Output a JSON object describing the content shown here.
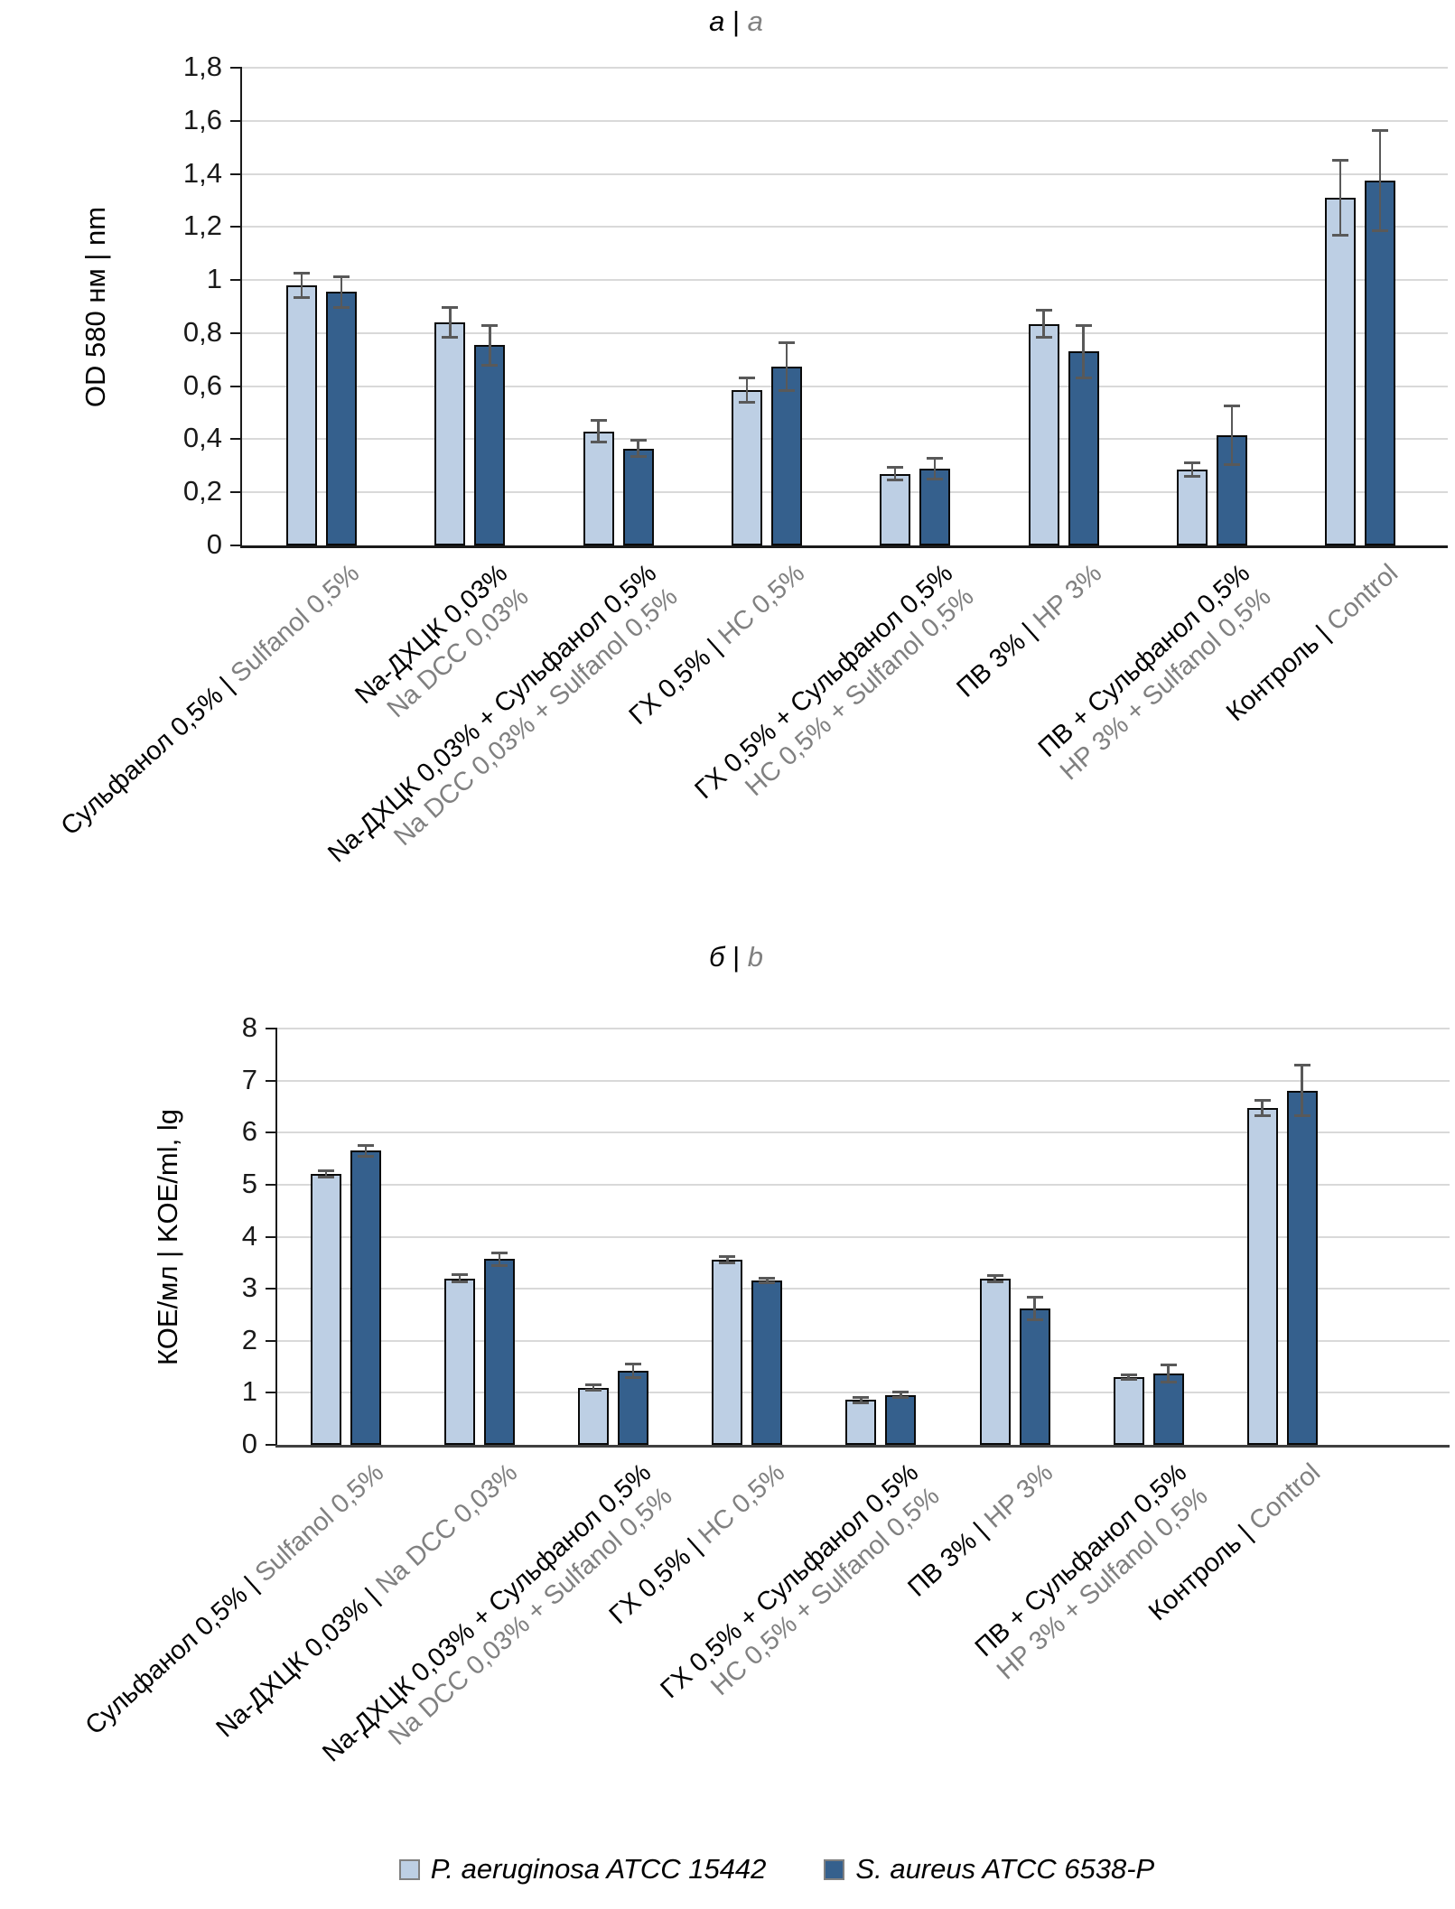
{
  "figure": {
    "legend": [
      {
        "label": "P. aeruginosa ATCC 15442",
        "color": "#BDCFE4"
      },
      {
        "label": "S. aureus ATCC 6538-P",
        "color": "#35608D"
      }
    ],
    "colors": {
      "grid": "#D9D9D9",
      "error": "#595959",
      "gray_text": "#808080",
      "bar_border": "#0A0A0A",
      "light_series": "#BDCFE4",
      "dark_series": "#35608D"
    }
  },
  "chart_data": [
    {
      "id": "a",
      "type": "bar",
      "panel_title": {
        "ru": "а",
        "en": "a"
      },
      "ylabel": "OD 580 нм | nm",
      "ymax": 1.8,
      "ylim": [
        0,
        1.8
      ],
      "grid": true,
      "ytick_labels": [
        "0",
        "0,2",
        "0,4",
        "0,6",
        "0,8",
        "1",
        "1,2",
        "1,4",
        "1,6",
        "1,8"
      ],
      "categories": [
        {
          "lines": [
            [
              {
                "t": "Сульфанол 0,5% | ",
                "c": "black"
              },
              {
                "t": "Sulfanol 0,5%",
                "c": "gray"
              }
            ]
          ]
        },
        {
          "lines": [
            [
              {
                "t": "Na-ДХЦК 0,03%",
                "c": "black"
              }
            ],
            [
              {
                "t": "Na DCC 0,03%",
                "c": "gray"
              }
            ]
          ]
        },
        {
          "lines": [
            [
              {
                "t": "Na-ДХЦК 0,03% + Сульфанол 0,5%",
                "c": "black"
              }
            ],
            [
              {
                "t": "Na DCC 0,03% + Sulfanol 0,5%",
                "c": "gray"
              }
            ]
          ]
        },
        {
          "lines": [
            [
              {
                "t": "ГХ 0,5% | ",
                "c": "black"
              },
              {
                "t": "НС 0,5%",
                "c": "gray"
              }
            ]
          ]
        },
        {
          "lines": [
            [
              {
                "t": "ГХ 0,5% + Сульфанол 0,5%",
                "c": "black"
              }
            ],
            [
              {
                "t": "НС 0,5% + Sulfanol 0,5%",
                "c": "gray"
              }
            ]
          ]
        },
        {
          "lines": [
            [
              {
                "t": "ПВ 3% | ",
                "c": "black"
              },
              {
                "t": "HP 3%",
                "c": "gray"
              }
            ]
          ]
        },
        {
          "lines": [
            [
              {
                "t": "ПВ + Сульфанол 0,5%",
                "c": "black"
              }
            ],
            [
              {
                "t": "HP 3% + Sulfanol 0,5%",
                "c": "gray"
              }
            ]
          ]
        },
        {
          "lines": [
            [
              {
                "t": "Контроль | ",
                "c": "black"
              },
              {
                "t": "Control",
                "c": "gray"
              }
            ]
          ]
        }
      ],
      "series": [
        {
          "name": "P. aeruginosa ATCC 15442",
          "color": "#BDCFE4",
          "values": [
            0.98,
            0.84,
            0.43,
            0.585,
            0.27,
            0.835,
            0.285,
            1.31
          ],
          "errors": [
            0.047,
            0.057,
            0.042,
            0.047,
            0.025,
            0.05,
            0.025,
            0.14
          ]
        },
        {
          "name": "S. aureus ATCC 6538-P",
          "color": "#35608D",
          "values": [
            0.955,
            0.755,
            0.365,
            0.675,
            0.29,
            0.73,
            0.415,
            1.375
          ],
          "errors": [
            0.058,
            0.075,
            0.03,
            0.09,
            0.04,
            0.1,
            0.11,
            0.19
          ]
        }
      ]
    },
    {
      "id": "b",
      "type": "bar",
      "panel_title": {
        "ru": "б",
        "en": "b"
      },
      "ylabel": "КОЕ/мл | KOE/ml, lg",
      "ymax": 8,
      "ylim": [
        0,
        8
      ],
      "grid": true,
      "ytick_labels": [
        "0",
        "1",
        "2",
        "3",
        "4",
        "5",
        "6",
        "7",
        "8"
      ],
      "categories": [
        {
          "lines": [
            [
              {
                "t": "Сульфанол 0,5% | ",
                "c": "black"
              },
              {
                "t": "Sulfanol 0,5%",
                "c": "gray"
              }
            ]
          ]
        },
        {
          "lines": [
            [
              {
                "t": "Na-ДХЦК 0,03% | ",
                "c": "black"
              },
              {
                "t": "Na DCC 0,03%",
                "c": "gray"
              }
            ]
          ]
        },
        {
          "lines": [
            [
              {
                "t": "Na-ДХЦК 0,03% + Сульфанол 0,5%",
                "c": "black"
              }
            ],
            [
              {
                "t": "Na DCC 0,03% + Sulfanol 0,5%",
                "c": "gray"
              }
            ]
          ]
        },
        {
          "lines": [
            [
              {
                "t": "ГХ 0,5% | ",
                "c": "black"
              },
              {
                "t": "НС 0,5%",
                "c": "gray"
              }
            ]
          ]
        },
        {
          "lines": [
            [
              {
                "t": "ГХ 0,5% + Сульфанол 0,5%",
                "c": "black"
              }
            ],
            [
              {
                "t": "НС 0,5% + Sulfanol 0,5%",
                "c": "gray"
              }
            ]
          ]
        },
        {
          "lines": [
            [
              {
                "t": "ПВ 3% | ",
                "c": "black"
              },
              {
                "t": "HP 3%",
                "c": "gray"
              }
            ]
          ]
        },
        {
          "lines": [
            [
              {
                "t": "ПВ + Сульфанол 0,5%",
                "c": "black"
              }
            ],
            [
              {
                "t": "HP 3% + Sulfanol 0,5%",
                "c": "gray"
              }
            ]
          ]
        },
        {
          "lines": [
            [
              {
                "t": "Контроль | ",
                "c": "black"
              },
              {
                "t": "Control",
                "c": "gray"
              }
            ]
          ]
        }
      ],
      "series": [
        {
          "name": "P. aeruginosa ATCC 15442",
          "color": "#BDCFE4",
          "values": [
            5.2,
            3.2,
            1.1,
            3.55,
            0.86,
            3.2,
            1.3,
            6.47
          ],
          "errors": [
            0.06,
            0.07,
            0.05,
            0.06,
            0.05,
            0.06,
            0.05,
            0.15
          ]
        },
        {
          "name": "S. aureus ATCC 6538-P",
          "color": "#35608D",
          "values": [
            5.65,
            3.57,
            1.42,
            3.16,
            0.96,
            2.62,
            1.37,
            6.81
          ],
          "errors": [
            0.1,
            0.12,
            0.13,
            0.05,
            0.05,
            0.22,
            0.17,
            0.49
          ]
        }
      ]
    }
  ]
}
